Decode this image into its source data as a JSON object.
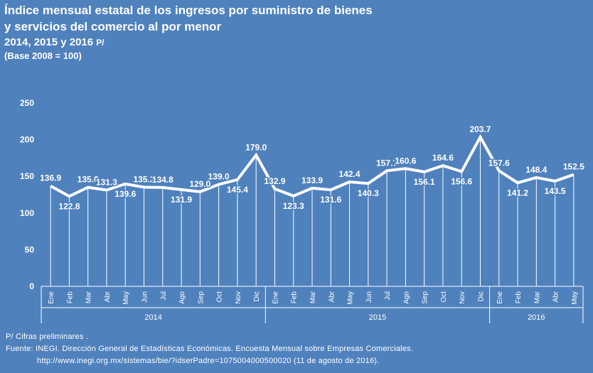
{
  "title": {
    "line1": "Índice mensual estatal de los ingresos por suministro de bienes",
    "line2": "y servicios del comercio al por menor",
    "line3": "2014, 2015 y 2016",
    "line3_suffix": "P/",
    "line4": "(Base 2008 = 100)"
  },
  "chart_data": {
    "type": "line",
    "title": "Índice mensual estatal de los ingresos por suministro de bienes y servicios del comercio al por menor",
    "ylim": [
      0,
      250
    ],
    "yticks": [
      0,
      50,
      100,
      150,
      200,
      250
    ],
    "series": [
      {
        "name": "Índice",
        "values": [
          136.9,
          122.8,
          135.0,
          131.3,
          139.6,
          135.2,
          134.8,
          131.9,
          129.0,
          139.0,
          145.4,
          179.0,
          132.9,
          123.3,
          133.9,
          131.6,
          142.4,
          140.3,
          157.7,
          160.6,
          156.1,
          164.6,
          156.6,
          203.7,
          157.6,
          141.2,
          148.4,
          143.5,
          152.5
        ],
        "labels": [
          "136.9",
          "122.8",
          "135.0",
          "131.3",
          "139.6",
          "135.2",
          "134.8",
          "131.9",
          "129.0",
          "139.0",
          "145.4",
          "179.0",
          "132.9",
          "123.3",
          "133.9",
          "131.6",
          "142.4",
          "140.3",
          "157.7",
          "160.6",
          "156.1",
          "164.6",
          "156.6",
          "203.7",
          "157.6",
          "141.2",
          "148.4",
          "143.5",
          "152.5"
        ],
        "label_pos": [
          "a",
          "b",
          "a",
          "a",
          "b",
          "a",
          "a",
          "b",
          "a",
          "a",
          "b",
          "a",
          "a",
          "b",
          "a",
          "b",
          "a",
          "b",
          "a",
          "a",
          "b",
          "a",
          "b",
          "a",
          "a",
          "b",
          "a",
          "b",
          "a"
        ]
      }
    ],
    "months": [
      "Ene",
      "Feb",
      "Mar",
      "Abr",
      "May",
      "Jun",
      "Jul",
      "Ago",
      "Sep",
      "Oct",
      "Nov",
      "Dic",
      "Ene",
      "Feb",
      "Mar",
      "Abr",
      "May",
      "Jun",
      "Jul",
      "Ago",
      "Sep",
      "Oct",
      "Nov",
      "Dic",
      "Ene",
      "Feb",
      "Mar",
      "Abr",
      "May"
    ],
    "years": [
      {
        "label": "2014",
        "count": 12
      },
      {
        "label": "2015",
        "count": 12
      },
      {
        "label": "2016",
        "count": 5
      }
    ],
    "grid": false,
    "colors": {
      "line": "#ffffff",
      "background": "#4f81bd",
      "drop_lines": "#ffffff"
    }
  },
  "notes": {
    "prelim": "P/ Cifras preliminares .",
    "source": "Fuente:  INEGI. Dirección General de Estadísticas Económicas. Encuesta Mensual sobre Empresas Comerciales.",
    "url": "http://www.inegi.org.mx/sistemas/bie/?idserPadre=1075004000500020 (11 de agosto de 2016)."
  }
}
